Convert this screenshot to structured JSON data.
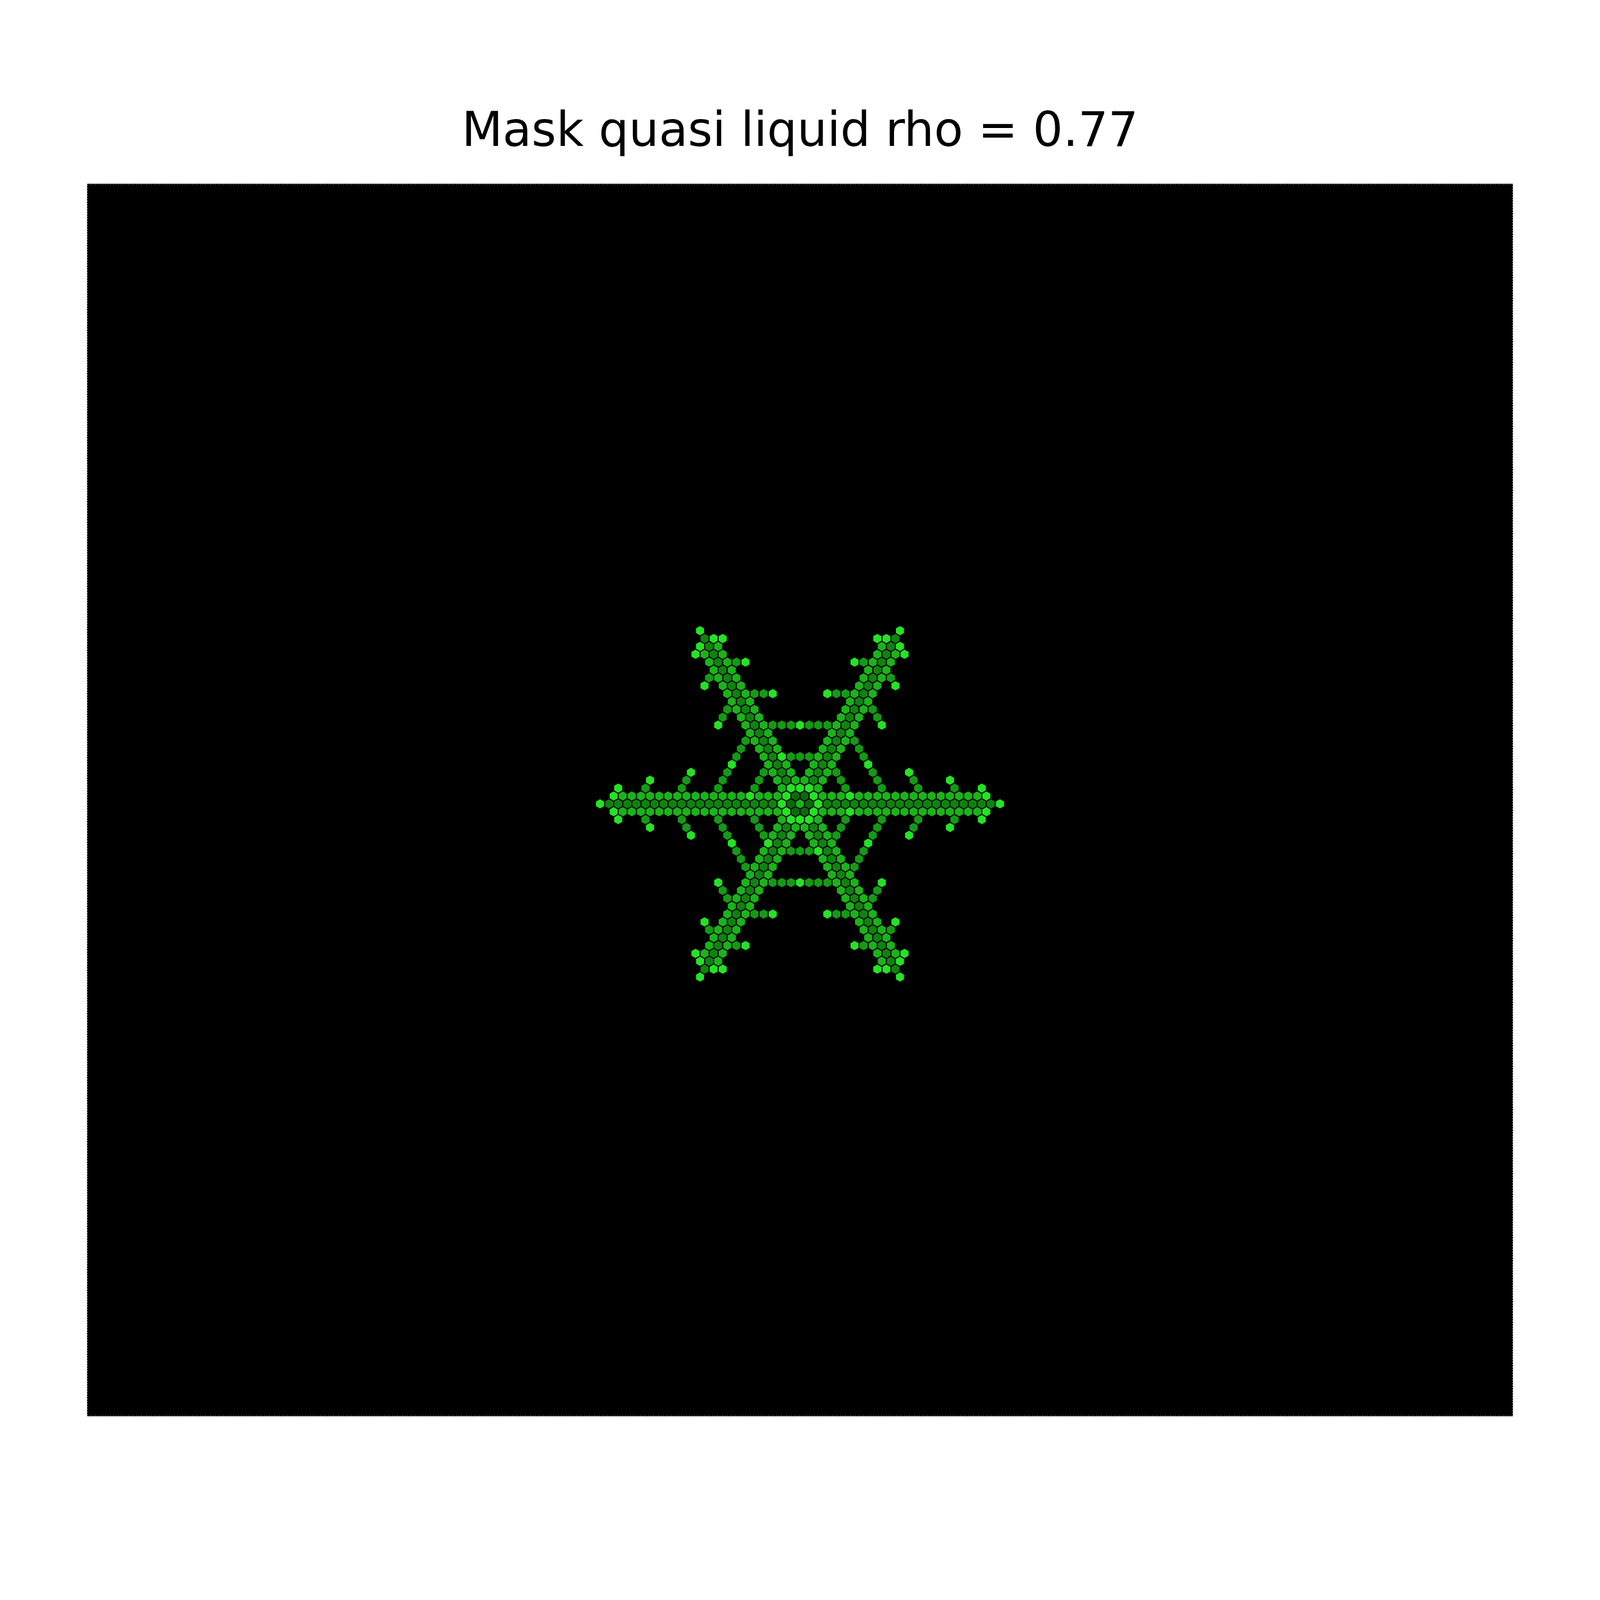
{
  "chart_data": {
    "type": "hexgrid",
    "title": "Mask quasi liquid rho = 0.77",
    "tick_labels": false,
    "arm_angles": [
      0,
      60,
      120,
      180,
      240,
      300
    ],
    "core": [
      [
        0,
        0,
        0.8
      ],
      [
        1,
        0,
        0.5
      ],
      [
        1,
        -1,
        0.5
      ],
      [
        0,
        -1,
        0.5
      ],
      [
        -1,
        0,
        0.5
      ],
      [
        -1,
        1,
        0.5
      ],
      [
        0,
        1,
        0.5
      ],
      [
        2,
        0,
        1
      ],
      [
        2,
        -1,
        1
      ],
      [
        2,
        -2,
        1
      ],
      [
        1,
        -2,
        1
      ],
      [
        0,
        -2,
        1
      ],
      [
        -1,
        -1,
        1
      ],
      [
        -2,
        0,
        1
      ],
      [
        -2,
        1,
        1
      ],
      [
        -2,
        2,
        1
      ],
      [
        -1,
        2,
        1
      ],
      [
        0,
        2,
        1
      ],
      [
        1,
        1,
        1
      ]
    ],
    "arm": [
      [
        3,
        0,
        0.6
      ],
      [
        4,
        0,
        0.6
      ],
      [
        5,
        0,
        0.6
      ],
      [
        6,
        0,
        0.6
      ],
      [
        7,
        0,
        0.6
      ],
      [
        8,
        0,
        0.6
      ],
      [
        9,
        0,
        0.6
      ],
      [
        10,
        0,
        0.6
      ],
      [
        11,
        0,
        0.6
      ],
      [
        12,
        0,
        0.6
      ],
      [
        13,
        0,
        0.6
      ],
      [
        14,
        0,
        0.6
      ],
      [
        15,
        0,
        0.6
      ],
      [
        16,
        0,
        0.6
      ],
      [
        17,
        0,
        0.6
      ],
      [
        18,
        0,
        0.6
      ],
      [
        19,
        0,
        0.6
      ],
      [
        20,
        0,
        0.6
      ],
      [
        21,
        0,
        0.6
      ],
      [
        22,
        0,
        1
      ],
      [
        3,
        -1,
        0.8
      ],
      [
        4,
        -1,
        0.8
      ],
      [
        5,
        -1,
        0.8
      ],
      [
        6,
        -1,
        0.8
      ],
      [
        7,
        -1,
        0.8
      ],
      [
        8,
        -1,
        0.8
      ],
      [
        9,
        -1,
        0.8
      ],
      [
        10,
        -1,
        0.8
      ],
      [
        11,
        -1,
        0.8
      ],
      [
        12,
        -1,
        0.8
      ],
      [
        13,
        -1,
        0.8
      ],
      [
        14,
        -1,
        0.8
      ],
      [
        15,
        -1,
        0.8
      ],
      [
        16,
        -1,
        0.8
      ],
      [
        17,
        -1,
        0.8
      ],
      [
        18,
        -1,
        0.8
      ],
      [
        19,
        -1,
        0.8
      ],
      [
        20,
        -1,
        0.8
      ],
      [
        21,
        -1,
        1
      ],
      [
        2,
        1,
        0.8
      ],
      [
        3,
        1,
        0.8
      ],
      [
        4,
        1,
        0.8
      ],
      [
        5,
        1,
        0.8
      ],
      [
        6,
        1,
        0.8
      ],
      [
        7,
        1,
        0.8
      ],
      [
        8,
        1,
        0.8
      ],
      [
        9,
        1,
        0.8
      ],
      [
        10,
        1,
        0.8
      ],
      [
        11,
        1,
        0.8
      ],
      [
        12,
        1,
        0.8
      ],
      [
        13,
        1,
        0.8
      ],
      [
        14,
        1,
        0.8
      ],
      [
        15,
        1,
        0.8
      ],
      [
        16,
        1,
        0.8
      ],
      [
        17,
        1,
        0.8
      ],
      [
        18,
        1,
        0.8
      ],
      [
        19,
        1,
        0.8
      ],
      [
        20,
        1,
        1
      ],
      [
        6,
        -2,
        0.7
      ],
      [
        6,
        -3,
        0.7
      ],
      [
        6,
        -4,
        0.7
      ],
      [
        6,
        -5,
        1
      ],
      [
        4,
        2,
        0.7
      ],
      [
        3,
        3,
        0.7
      ],
      [
        2,
        4,
        0.7
      ],
      [
        1,
        5,
        1
      ],
      [
        10,
        -2,
        0.7
      ],
      [
        10,
        -3,
        0.7
      ],
      [
        10,
        -4,
        0.7
      ],
      [
        10,
        -5,
        1
      ],
      [
        8,
        2,
        0.7
      ],
      [
        7,
        3,
        0.7
      ],
      [
        6,
        4,
        0.7
      ],
      [
        5,
        5,
        1
      ],
      [
        14,
        -2,
        0.7
      ],
      [
        14,
        -3,
        0.7
      ],
      [
        14,
        -4,
        1
      ],
      [
        12,
        2,
        0.7
      ],
      [
        11,
        3,
        0.7
      ],
      [
        10,
        4,
        1
      ],
      [
        18,
        -2,
        0.7
      ],
      [
        18,
        -3,
        1
      ],
      [
        16,
        2,
        0.7
      ],
      [
        15,
        3,
        1
      ],
      [
        21,
        -2,
        1
      ],
      [
        19,
        2,
        1
      ]
    ]
  }
}
